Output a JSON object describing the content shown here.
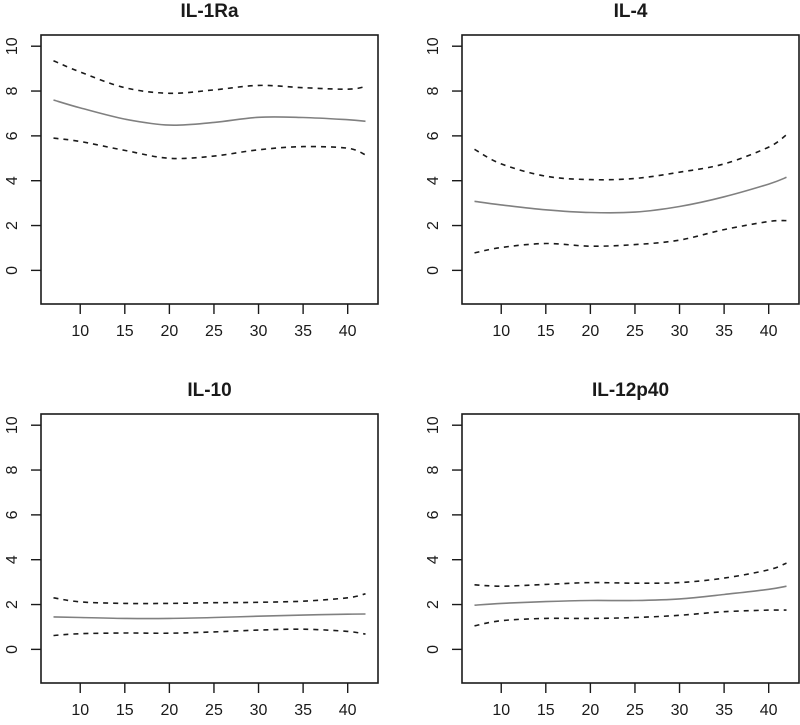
{
  "chart_data": [
    {
      "type": "line",
      "title": "IL-1Ra",
      "xlabel": "",
      "ylabel": "",
      "xlim": [
        7,
        42
      ],
      "ylim": [
        -1.5,
        10.5
      ],
      "xticks": [
        10,
        15,
        20,
        25,
        30,
        35,
        40
      ],
      "yticks": [
        0,
        2,
        4,
        6,
        8,
        10
      ],
      "grid": false,
      "x": [
        7,
        10,
        15,
        20,
        25,
        30,
        35,
        40,
        42
      ],
      "series": [
        {
          "name": "fit",
          "style": "solid",
          "color": "#808080",
          "values": [
            7.6,
            7.25,
            6.75,
            6.48,
            6.6,
            6.83,
            6.82,
            6.72,
            6.65
          ]
        },
        {
          "name": "upper",
          "style": "dashed",
          "color": "#1a1a1a",
          "values": [
            9.35,
            8.85,
            8.15,
            7.9,
            8.05,
            8.25,
            8.15,
            8.08,
            8.2
          ]
        },
        {
          "name": "lower",
          "style": "dashed",
          "color": "#1a1a1a",
          "values": [
            5.9,
            5.75,
            5.35,
            5.0,
            5.1,
            5.38,
            5.52,
            5.45,
            5.15
          ]
        }
      ]
    },
    {
      "type": "line",
      "title": "IL-4",
      "xlabel": "",
      "ylabel": "",
      "xlim": [
        7,
        42
      ],
      "ylim": [
        -1.5,
        10.5
      ],
      "xticks": [
        10,
        15,
        20,
        25,
        30,
        35,
        40
      ],
      "yticks": [
        0,
        2,
        4,
        6,
        8,
        10
      ],
      "grid": false,
      "x": [
        7,
        10,
        15,
        20,
        25,
        30,
        35,
        40,
        42
      ],
      "series": [
        {
          "name": "fit",
          "style": "solid",
          "color": "#808080",
          "values": [
            3.08,
            2.92,
            2.7,
            2.58,
            2.6,
            2.85,
            3.28,
            3.85,
            4.15
          ]
        },
        {
          "name": "upper",
          "style": "dashed",
          "color": "#1a1a1a",
          "values": [
            5.4,
            4.75,
            4.2,
            4.05,
            4.1,
            4.38,
            4.75,
            5.5,
            6.05
          ]
        },
        {
          "name": "lower",
          "style": "dashed",
          "color": "#1a1a1a",
          "values": [
            0.78,
            1.02,
            1.2,
            1.08,
            1.15,
            1.35,
            1.82,
            2.18,
            2.22
          ]
        }
      ]
    },
    {
      "type": "line",
      "title": "IL-10",
      "xlabel": "",
      "ylabel": "",
      "xlim": [
        7,
        42
      ],
      "ylim": [
        -1.5,
        10.5
      ],
      "xticks": [
        10,
        15,
        20,
        25,
        30,
        35,
        40
      ],
      "yticks": [
        0,
        2,
        4,
        6,
        8,
        10
      ],
      "grid": false,
      "x": [
        7,
        10,
        15,
        20,
        25,
        30,
        35,
        40,
        42
      ],
      "series": [
        {
          "name": "fit",
          "style": "solid",
          "color": "#808080",
          "values": [
            1.45,
            1.42,
            1.38,
            1.38,
            1.42,
            1.48,
            1.53,
            1.57,
            1.58
          ]
        },
        {
          "name": "upper",
          "style": "dashed",
          "color": "#1a1a1a",
          "values": [
            2.3,
            2.12,
            2.05,
            2.05,
            2.08,
            2.1,
            2.15,
            2.3,
            2.48
          ]
        },
        {
          "name": "lower",
          "style": "dashed",
          "color": "#1a1a1a",
          "values": [
            0.62,
            0.7,
            0.73,
            0.72,
            0.78,
            0.86,
            0.9,
            0.8,
            0.68
          ]
        }
      ]
    },
    {
      "type": "line",
      "title": "IL-12p40",
      "xlabel": "",
      "ylabel": "",
      "xlim": [
        7,
        42
      ],
      "ylim": [
        -1.5,
        10.5
      ],
      "xticks": [
        10,
        15,
        20,
        25,
        30,
        35,
        40
      ],
      "yticks": [
        0,
        2,
        4,
        6,
        8,
        10
      ],
      "grid": false,
      "x": [
        7,
        10,
        15,
        20,
        25,
        30,
        35,
        40,
        42
      ],
      "series": [
        {
          "name": "fit",
          "style": "solid",
          "color": "#808080",
          "values": [
            1.97,
            2.05,
            2.13,
            2.18,
            2.18,
            2.25,
            2.45,
            2.68,
            2.82
          ]
        },
        {
          "name": "upper",
          "style": "dashed",
          "color": "#1a1a1a",
          "values": [
            2.88,
            2.82,
            2.9,
            2.98,
            2.95,
            2.98,
            3.18,
            3.55,
            3.85
          ]
        },
        {
          "name": "lower",
          "style": "dashed",
          "color": "#1a1a1a",
          "values": [
            1.05,
            1.28,
            1.38,
            1.38,
            1.42,
            1.52,
            1.68,
            1.75,
            1.75
          ]
        }
      ]
    }
  ]
}
